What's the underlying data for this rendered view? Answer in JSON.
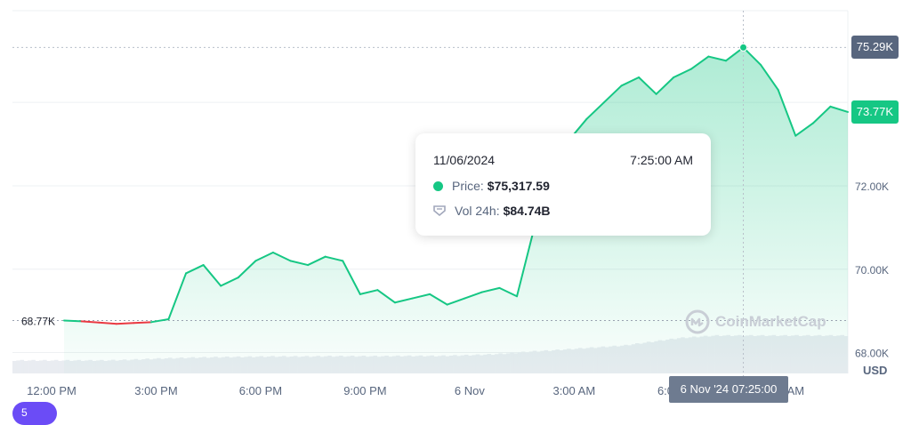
{
  "chart_data": {
    "type": "area",
    "x": [
      "12:00 PM",
      "12:30 PM",
      "1:00 PM",
      "1:30 PM",
      "2:00 PM",
      "2:30 PM",
      "3:00 PM",
      "3:30 PM",
      "4:00 PM",
      "4:30 PM",
      "5:00 PM",
      "5:30 PM",
      "6:00 PM",
      "6:30 PM",
      "7:00 PM",
      "7:30 PM",
      "8:00 PM",
      "8:30 PM",
      "9:00 PM",
      "9:30 PM",
      "10:00 PM",
      "10:30 PM",
      "11:00 PM",
      "11:30 PM",
      "6 Nov",
      "12:30 AM",
      "1:00 AM",
      "1:30 AM",
      "2:00 AM",
      "2:30 AM",
      "3:00 AM",
      "3:30 AM",
      "4:00 AM",
      "4:30 AM",
      "5:00 AM",
      "5:30 AM",
      "6:00 AM",
      "6:30 AM",
      "7:00 AM",
      "7:25 AM",
      "8:00 AM",
      "8:30 AM",
      "9:00 AM",
      "9:30 AM",
      "10:00 AM",
      "10:30 AM"
    ],
    "series": [
      {
        "values": [
          68.77,
          68.75,
          68.72,
          68.69,
          68.71,
          68.73,
          68.8,
          69.9,
          70.1,
          69.6,
          69.8,
          70.2,
          70.4,
          70.2,
          70.1,
          70.3,
          70.2,
          69.4,
          69.5,
          69.2,
          69.3,
          69.4,
          69.15,
          69.3,
          69.45,
          69.55,
          69.35,
          71.0,
          72.5,
          73.1,
          73.6,
          74.0,
          74.4,
          74.6,
          74.2,
          74.6,
          74.8,
          75.1,
          75.0,
          75.317,
          74.9,
          74.3,
          73.2,
          73.5,
          73.9,
          73.77
        ],
        "color": "#16c784",
        "down_color": "#ea3943"
      }
    ],
    "ylim": [
      67.5,
      76.2
    ],
    "yticks": [
      "68.00K",
      "70.00K",
      "72.00K"
    ],
    "xticks": [
      "12:00 PM",
      "3:00 PM",
      "6:00 PM",
      "9:00 PM",
      "6 Nov",
      "3:00 AM",
      "6:00 AM",
      "9:00 AM"
    ],
    "open_value": 68.77,
    "open_label": "68.77K",
    "current_label": "73.77K",
    "hover_label": "75.29K",
    "unit_label": "USD",
    "grid": true,
    "volume_profile": [
      0.5,
      0.5,
      0.5,
      0.5,
      0.5,
      0.5,
      0.52,
      0.55,
      0.58,
      0.6,
      0.62,
      0.63,
      0.64,
      0.65,
      0.66,
      0.66,
      0.66,
      0.67,
      0.67,
      0.67,
      0.67,
      0.68,
      0.68,
      0.68,
      0.7,
      0.72,
      0.75,
      0.8,
      0.86,
      0.9,
      0.95,
      1.0,
      1.05,
      1.1,
      1.2,
      1.3,
      1.4,
      1.45,
      1.5,
      1.5,
      1.5,
      1.5,
      1.5,
      1.5,
      1.5,
      1.5
    ]
  },
  "tooltip": {
    "date": "11/06/2024",
    "time": "7:25:00 AM",
    "price_label": "Price:",
    "price_value": "$75,317.59",
    "vol_label": "Vol 24h:",
    "vol_value": "$84.74B",
    "price_color": "#16c784"
  },
  "crosshair_time": "6 Nov '24 07:25:00",
  "watermark": "CoinMarketCap",
  "corner_badge": "5"
}
